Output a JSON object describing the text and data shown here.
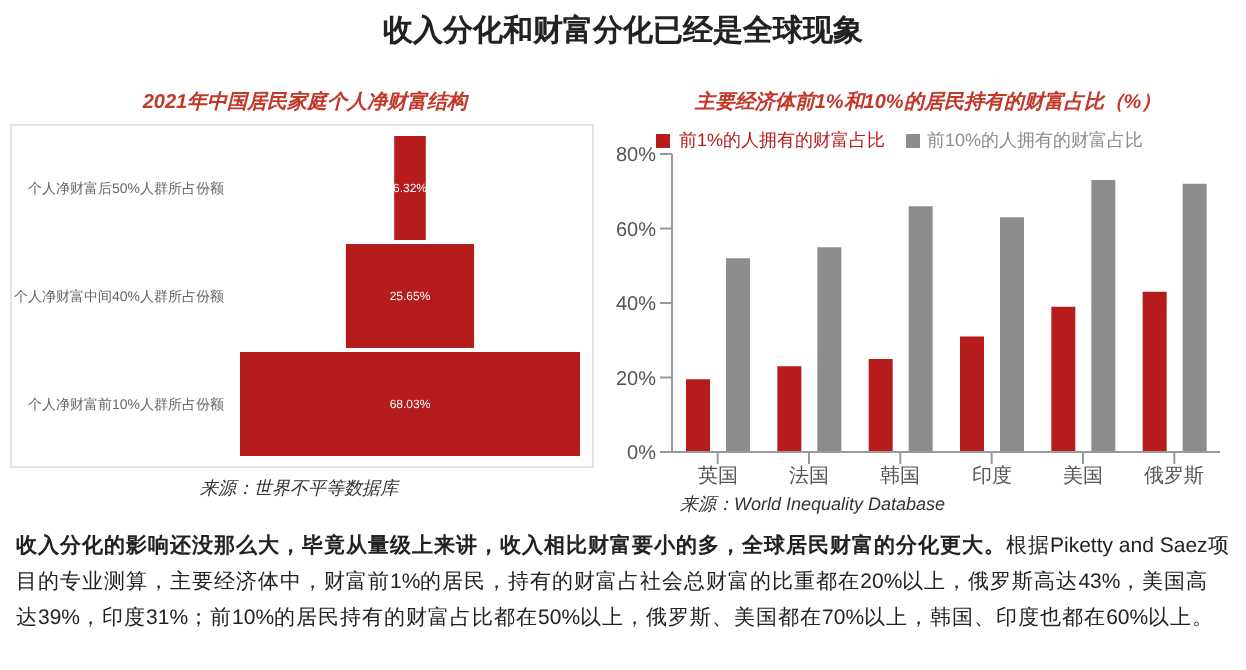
{
  "chart_data": [
    {
      "type": "other",
      "title": "收入分化和财富分化已经是全球现象",
      "subtitle": "2021年中国居民家庭个人净财富结构",
      "categories": [
        "个人净财富后50%人群所占份额",
        "个人净财富中间40%人群所占份额",
        "个人净财富前10%人群所占份额"
      ],
      "values": [
        6.32,
        25.65,
        68.03
      ],
      "value_labels": [
        "6.32%",
        "25.65%",
        "68.03%"
      ],
      "color": "#b71c1c",
      "annotations": [
        "来源：世界不平等数据库"
      ]
    },
    {
      "type": "bar",
      "title": "主要经济体前1%和10%的居民持有的财富占比（%）",
      "categories": [
        "英国",
        "法国",
        "韩国",
        "印度",
        "美国",
        "俄罗斯"
      ],
      "series": [
        {
          "name": "前1%的人拥有的财富占比",
          "color": "#b71c1c",
          "values": [
            19.5,
            23,
            25,
            31,
            39,
            43
          ]
        },
        {
          "name": "前10%的人拥有的财富占比",
          "color": "#8c8c8c",
          "values": [
            52,
            55,
            66,
            63,
            73,
            72
          ]
        }
      ],
      "ylim": [
        0,
        80
      ],
      "yticks": [
        {
          "value": 0,
          "label": "0%"
        },
        {
          "value": 20,
          "label": "20%"
        },
        {
          "value": 40,
          "label": "40%"
        },
        {
          "value": 60,
          "label": "60%"
        },
        {
          "value": 80,
          "label": "80%"
        }
      ],
      "grid": false,
      "legend": "top",
      "annotations": [
        "来源：World Inequality Database",
        "收入分化的影响还没那么大，毕竟从量级上来讲，收入相比财富要小的多，全球居民财富的分化更大。",
        "根据Piketty and Saez项目的专业测算，主要经济体中，财富前1%的居民，持有的财富占社会总财富的比重都在20%以上，俄罗斯高达43%，美国高达39%，印度31%；前10%的居民持有的财富占比都在50%以上，俄罗斯、美国都在70%以上，韩国、印度也都在60%以上。"
      ]
    }
  ]
}
